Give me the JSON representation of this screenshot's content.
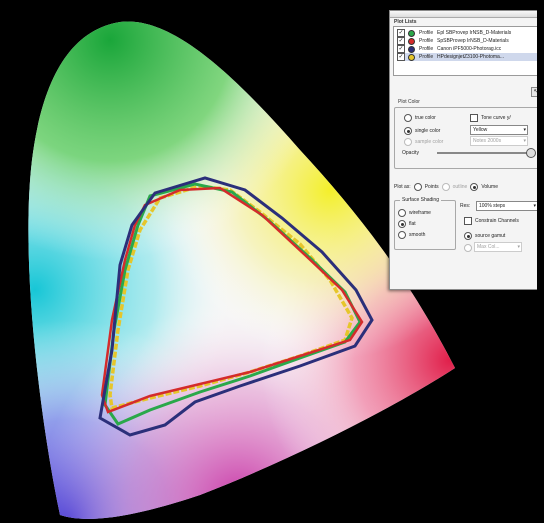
{
  "panel": {
    "plot_list_header": "Plot Lists",
    "plots": [
      {
        "kind": "Profile",
        "name": "Epl SBProvep IrNSB_D-Materials",
        "color": "#2aa84a"
      },
      {
        "kind": "Profile",
        "name": "SpSBProvep IrNSB_D-Materials",
        "color": "#d42b2b"
      },
      {
        "kind": "Profile",
        "name": "Canon iPF5000-Photorag.icc",
        "color": "#2b2f7a"
      },
      {
        "kind": "Profile",
        "name": "HPdesignjetZ3100-Photoma...",
        "color": "#e6c62a"
      }
    ],
    "plot_color_header": "Plot Color",
    "options": {
      "true_color": "true color",
      "tone_curve": "Tone curve y/",
      "single_color": "single color",
      "single_color_value": "Yellow",
      "sample_color": "sample color",
      "sample_color_value": "Notes 2000s",
      "opacity": "Opacity"
    },
    "plot_as": {
      "label": "Plot as:",
      "points": "Points",
      "outline": "outline",
      "volume": "Volume"
    },
    "surface_shading": {
      "label": "Surface Shading",
      "wireframe": "wireframe",
      "flat": "flat",
      "smooth": "smooth"
    },
    "res": {
      "label": "Res:",
      "value": "100% steps",
      "constrain": "Constrain Channels",
      "source_gamut": "source gamut",
      "max_col": "Max Col..."
    }
  },
  "colors": {
    "panel_bg": "#f4f4f4",
    "outline_green": "#2aa84a",
    "outline_red": "#d42b2b",
    "outline_navy": "#2b2f7a",
    "outline_yellow": "#e6c62a"
  }
}
